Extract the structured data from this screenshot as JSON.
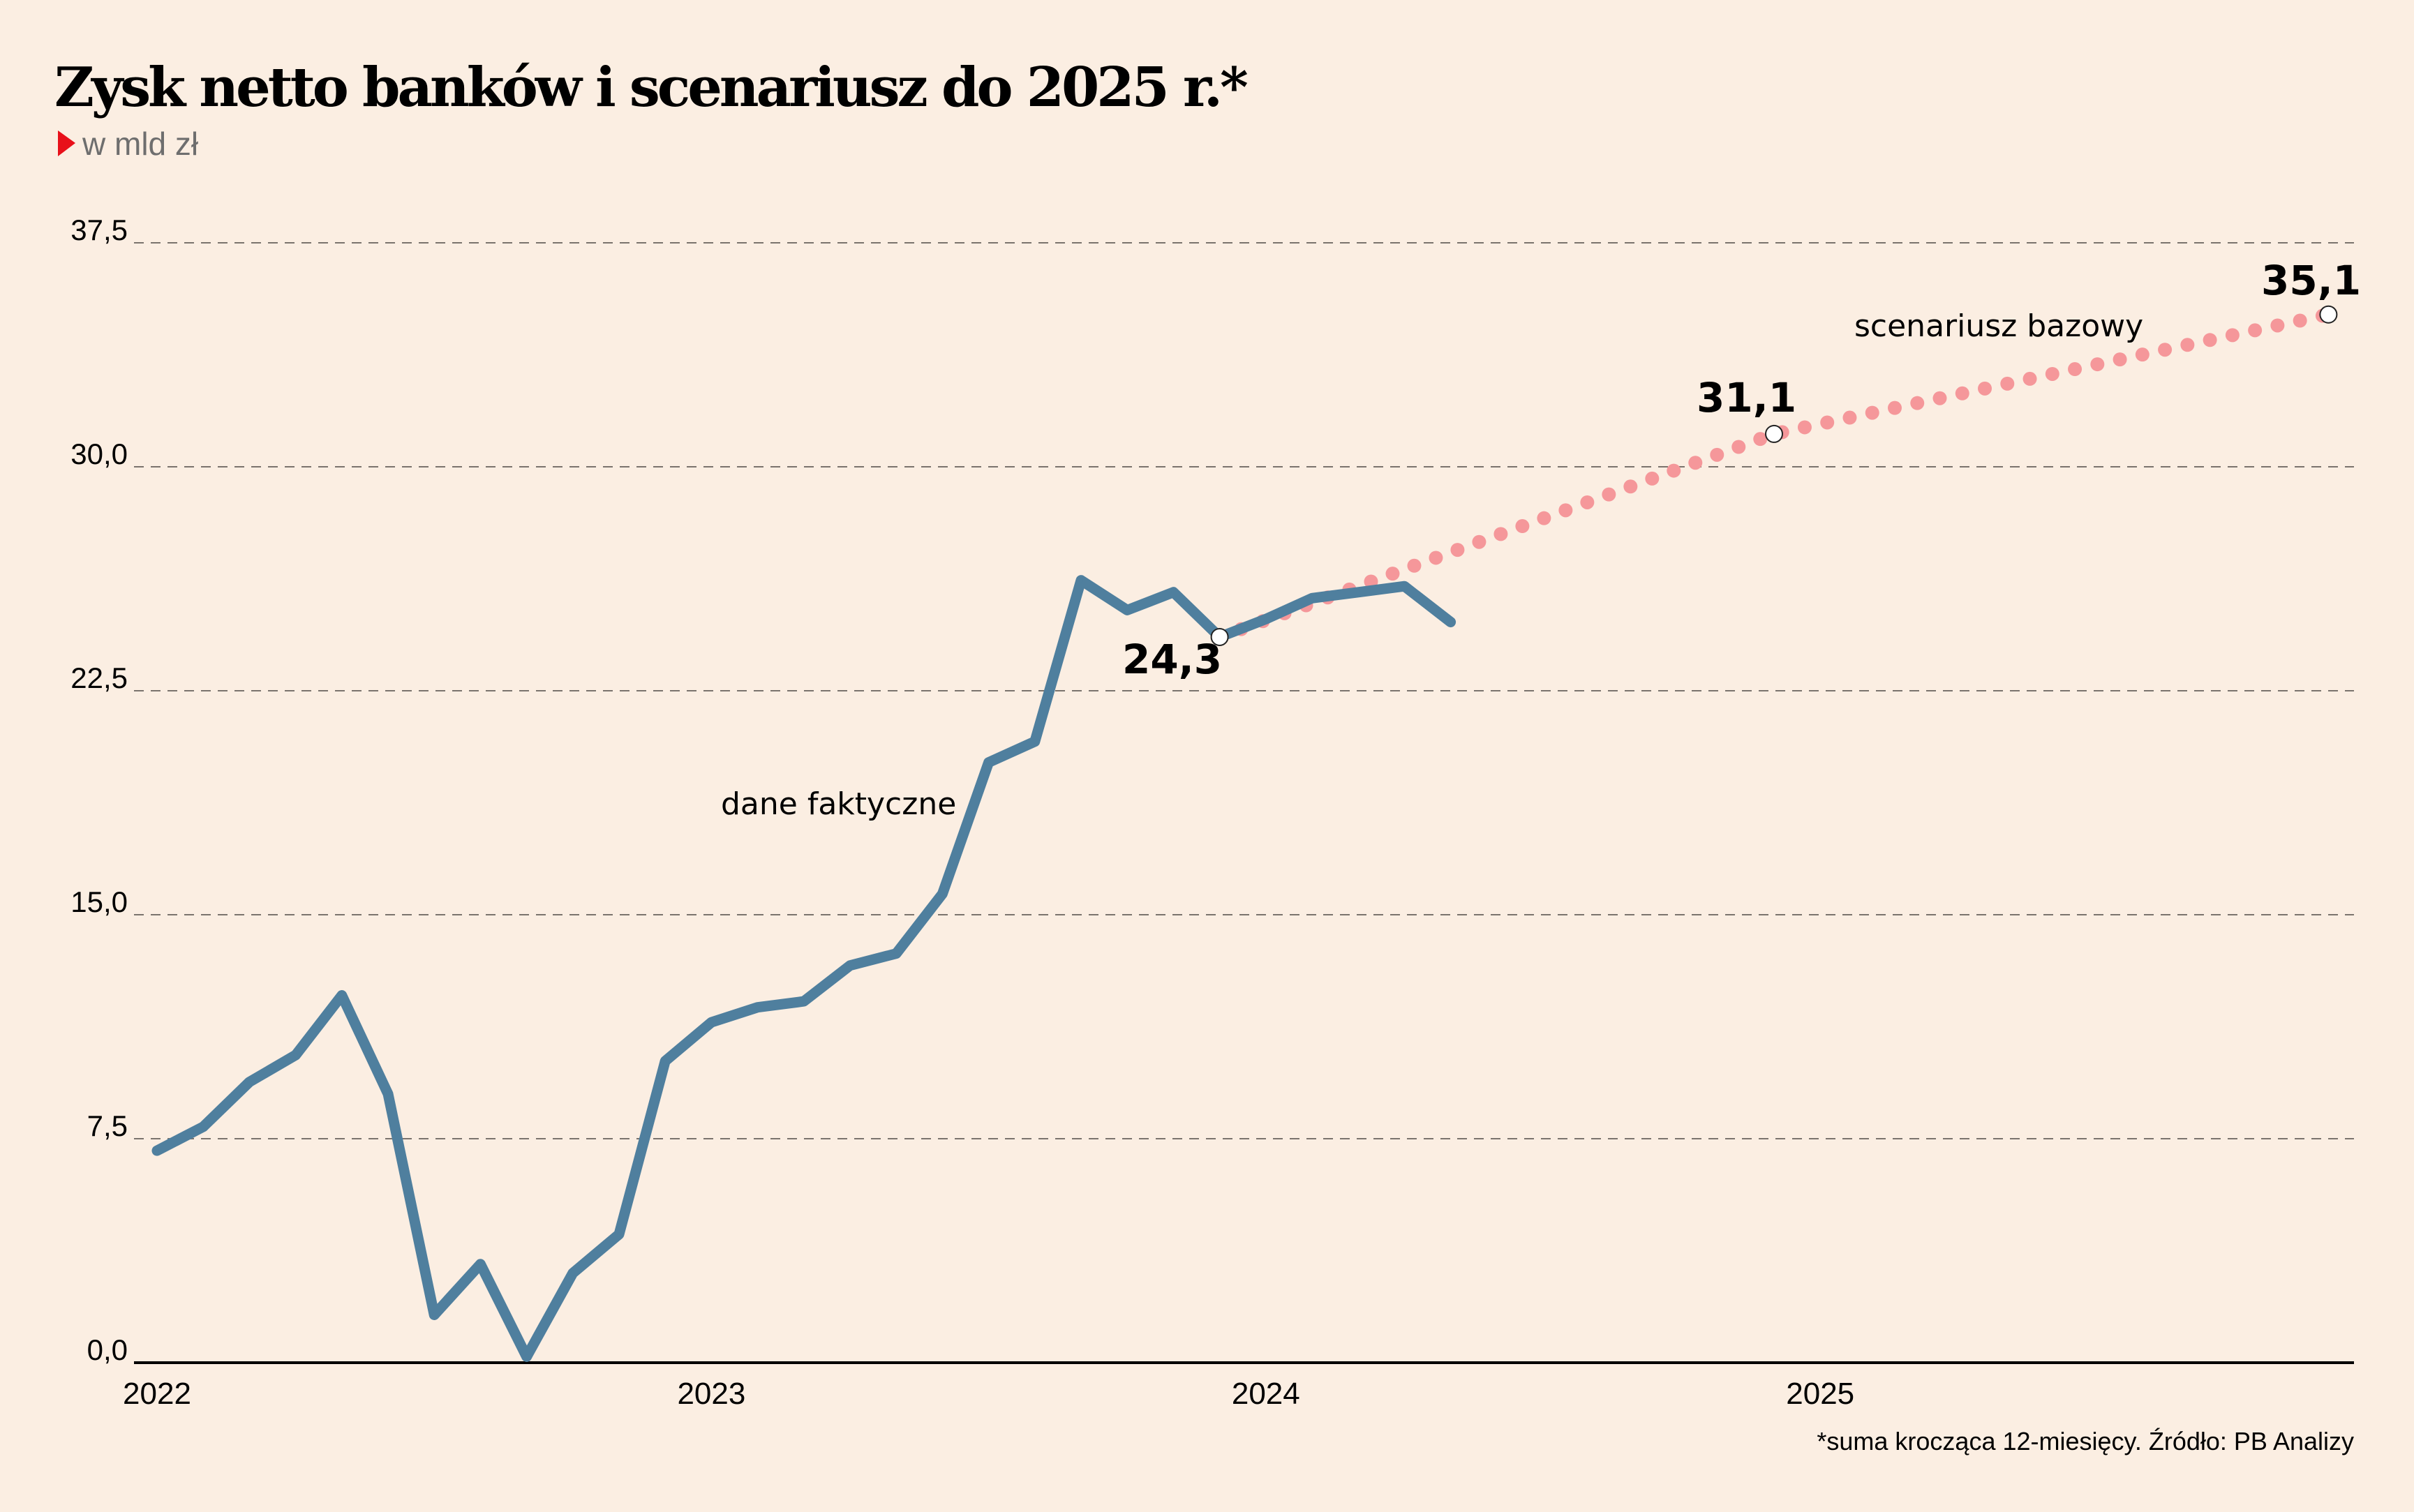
{
  "colors": {
    "background": "#fbeee2",
    "actual_line": "#4f7f9e",
    "forecast_line": "#f5979a",
    "accent_triangle": "#e8101a",
    "grid": "#7a736d",
    "axis": "#000000",
    "subtitle": "#6e6e6e"
  },
  "chart_data": {
    "type": "line",
    "title": "Zysk netto banków i scenariusz do 2025 r.*",
    "subtitle": "w mld zł",
    "xlabel": "",
    "ylabel": "",
    "ylim": [
      0,
      37.5
    ],
    "yticks": [
      0,
      7.5,
      15,
      22.5,
      30,
      37.5
    ],
    "ytick_labels": [
      "0,0",
      "7,5",
      "15,0",
      "22,5",
      "30,0",
      "37,5"
    ],
    "grid": true,
    "x_unit": "month index from Jan 2022",
    "xlim": [
      0,
      47
    ],
    "xticks": [
      0,
      12,
      24,
      36
    ],
    "xtick_labels": [
      "2022",
      "2023",
      "2024",
      "2025"
    ],
    "series": [
      {
        "name": "dane faktyczne",
        "style": "solid",
        "x": [
          0,
          1,
          2,
          3,
          4,
          5,
          6,
          7,
          8,
          9,
          10,
          11,
          12,
          13,
          14,
          15,
          16,
          17,
          18,
          19,
          20,
          21,
          22,
          23,
          24,
          25,
          26,
          27,
          28
        ],
        "values": [
          7.1,
          7.9,
          9.4,
          10.3,
          12.3,
          9.0,
          1.6,
          3.3,
          0.2,
          3.0,
          4.3,
          10.1,
          11.4,
          11.9,
          12.1,
          13.3,
          13.7,
          15.7,
          20.1,
          20.8,
          26.2,
          25.2,
          25.8,
          24.3,
          24.9,
          25.6,
          25.8,
          26.0,
          24.8
        ]
      },
      {
        "name": "scenariusz bazowy",
        "style": "dotted",
        "x": [
          23,
          35,
          47
        ],
        "values": [
          24.3,
          31.1,
          35.1
        ]
      }
    ],
    "annotations": [
      {
        "text": "dane faktyczne",
        "series": "dane faktyczne"
      },
      {
        "text": "scenariusz bazowy",
        "series": "scenariusz bazowy"
      },
      {
        "text": "24,3",
        "x": 23,
        "value": 24.3,
        "marker": true
      },
      {
        "text": "31,1",
        "x": 35,
        "value": 31.1,
        "marker": true
      },
      {
        "text": "35,1",
        "x": 47,
        "value": 35.1,
        "marker": true
      }
    ],
    "footnote": "*suma krocząca 12-miesięcy. Źródło: PB Analizy"
  }
}
